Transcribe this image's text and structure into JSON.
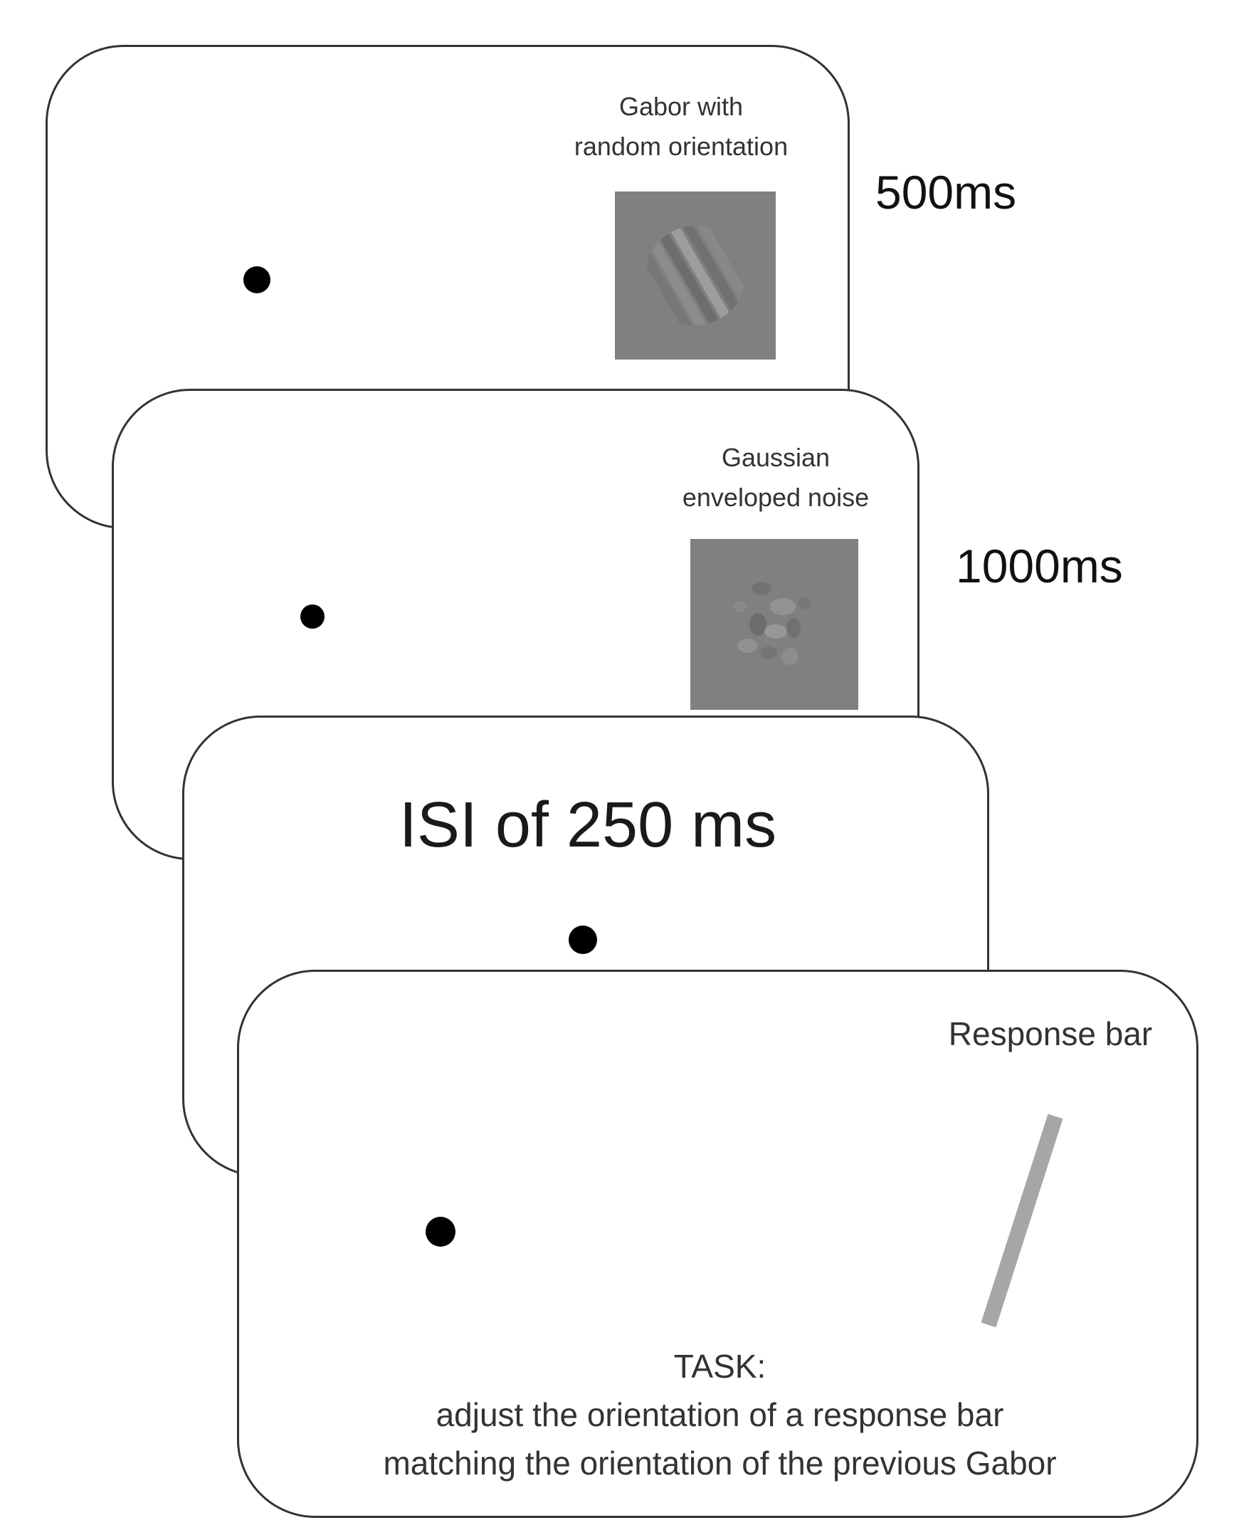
{
  "frames": [
    {
      "label_lines": [
        "Gabor with",
        "random orientation"
      ],
      "stimulus": "gabor-patch",
      "duration": "500ms"
    },
    {
      "label_lines": [
        "Gaussian",
        "enveloped noise"
      ],
      "stimulus": "noise-patch",
      "duration": "1000ms"
    },
    {
      "title": "ISI of 250 ms",
      "stimulus": "fixation-only"
    },
    {
      "label": "Response bar",
      "stimulus": "response-bar",
      "task": {
        "heading": "TASK:",
        "line1": "adjust the orientation of a response bar",
        "line2": "matching the orientation of the previous Gabor"
      }
    }
  ],
  "colors": {
    "patch_gray": "#808080",
    "response_bar": "#a6a6a6",
    "fixation_dot": "#000000",
    "card_border": "#333333"
  }
}
